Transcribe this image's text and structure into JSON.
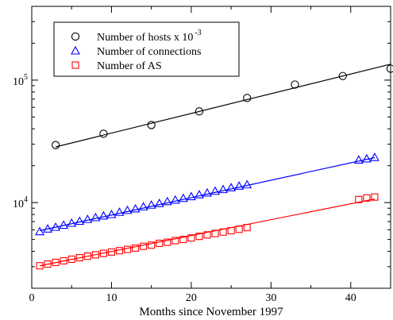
{
  "chart_data": {
    "type": "scatter",
    "title": "",
    "xlabel": "Months since November 1997",
    "ylabel": "",
    "xlim": [
      0,
      45
    ],
    "ylim": [
      2000,
      400000
    ],
    "yscale": "log",
    "grid": false,
    "legend_position": "top-left",
    "x_ticks": [
      0,
      10,
      20,
      30,
      40
    ],
    "y_ticks": [
      {
        "value": 10000,
        "base": "10",
        "exp": "4"
      },
      {
        "value": 100000,
        "base": "10",
        "exp": "5"
      }
    ],
    "series": [
      {
        "name": "Number of hosts x 10",
        "name_superscript": "-3",
        "marker": "circle",
        "color": "#000000",
        "x": [
          3,
          9,
          15,
          21,
          27,
          33,
          39,
          45
        ],
        "y": [
          29500,
          36500,
          43000,
          55500,
          71500,
          92000,
          108000,
          124000
        ],
        "fit": {
          "x": [
            3,
            45
          ],
          "y": [
            28500,
            135000
          ]
        }
      },
      {
        "name": "Number of connections",
        "marker": "triangle",
        "color": "#0000ff",
        "x": [
          1,
          2,
          3,
          4,
          5,
          6,
          7,
          8,
          9,
          10,
          11,
          12,
          13,
          14,
          15,
          16,
          17,
          18,
          19,
          20,
          21,
          22,
          23,
          24,
          25,
          26,
          27,
          41,
          42,
          43
        ],
        "y": [
          5800,
          6100,
          6300,
          6550,
          6800,
          7050,
          7300,
          7550,
          7800,
          8000,
          8350,
          8650,
          8900,
          9250,
          9550,
          9850,
          10200,
          10500,
          10850,
          11200,
          11600,
          12000,
          12400,
          12800,
          13250,
          13650,
          14000,
          22300,
          22800,
          23400
        ],
        "fit": {
          "x": [
            1,
            43
          ],
          "y": [
            5900,
            23300
          ]
        }
      },
      {
        "name": "Number of AS",
        "marker": "square",
        "color": "#ff0000",
        "x": [
          1,
          2,
          3,
          4,
          5,
          6,
          7,
          8,
          9,
          10,
          11,
          12,
          13,
          14,
          15,
          16,
          17,
          18,
          19,
          20,
          21,
          22,
          23,
          24,
          25,
          26,
          27,
          41,
          42,
          43
        ],
        "y": [
          3050,
          3150,
          3250,
          3350,
          3450,
          3550,
          3650,
          3750,
          3850,
          3950,
          4050,
          4150,
          4250,
          4400,
          4500,
          4650,
          4750,
          4900,
          5000,
          5150,
          5300,
          5450,
          5600,
          5750,
          5900,
          6050,
          6250,
          10600,
          10900,
          11100
        ],
        "fit": {
          "x": [
            1,
            43
          ],
          "y": [
            3050,
            10700
          ]
        }
      }
    ]
  }
}
